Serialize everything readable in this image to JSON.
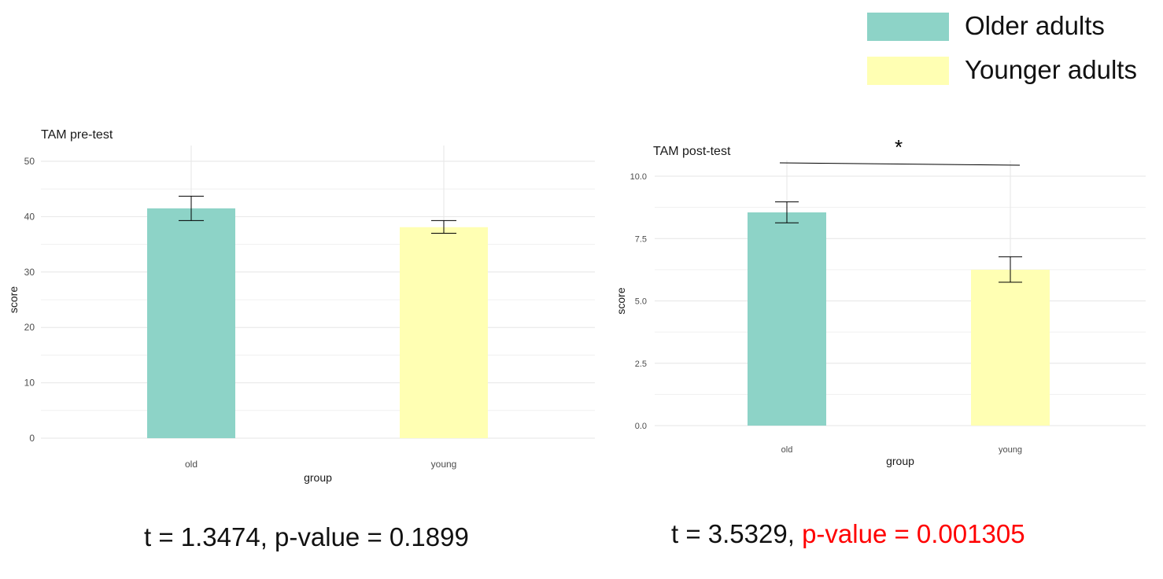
{
  "legend": {
    "items": [
      {
        "label": "Older adults",
        "color": "#8dd3c7"
      },
      {
        "label": "Younger adults",
        "color": "#ffffb3"
      }
    ]
  },
  "stats": {
    "pre": {
      "text": "t = 1.3474, p-value = 0.1899"
    },
    "post": {
      "t_text": "t = 3.5329, ",
      "p_text": "p-value = 0.001305",
      "p_color": "#ff0000"
    }
  },
  "chart_data": [
    {
      "type": "bar",
      "title": "TAM pre-test",
      "xlabel": "group",
      "ylabel": "score",
      "categories": [
        "old",
        "young"
      ],
      "values": [
        41.5,
        38.1
      ],
      "error_low": [
        39.3,
        37.0
      ],
      "error_high": [
        43.7,
        39.3
      ],
      "colors": [
        "#8dd3c7",
        "#ffffb3"
      ],
      "ylim": [
        0,
        50
      ],
      "yticks": [
        0,
        10,
        20,
        30,
        40,
        50
      ],
      "ytick_labels": [
        "0",
        "10",
        "20",
        "30",
        "40",
        "50"
      ],
      "grid": true
    },
    {
      "type": "bar",
      "title": "TAM post-test",
      "xlabel": "group",
      "ylabel": "score",
      "categories": [
        "old",
        "young"
      ],
      "values": [
        8.55,
        6.25
      ],
      "error_low": [
        8.13,
        5.75
      ],
      "error_high": [
        8.97,
        6.77
      ],
      "colors": [
        "#8dd3c7",
        "#ffffb3"
      ],
      "ylim": [
        0,
        10
      ],
      "yticks": [
        0,
        2.5,
        5,
        7.5,
        10
      ],
      "ytick_labels": [
        "0.0",
        "2.5",
        "5.0",
        "7.5",
        "10.0"
      ],
      "grid": true,
      "annotation": {
        "label": "*",
        "between": [
          "old",
          "young"
        ]
      }
    }
  ]
}
